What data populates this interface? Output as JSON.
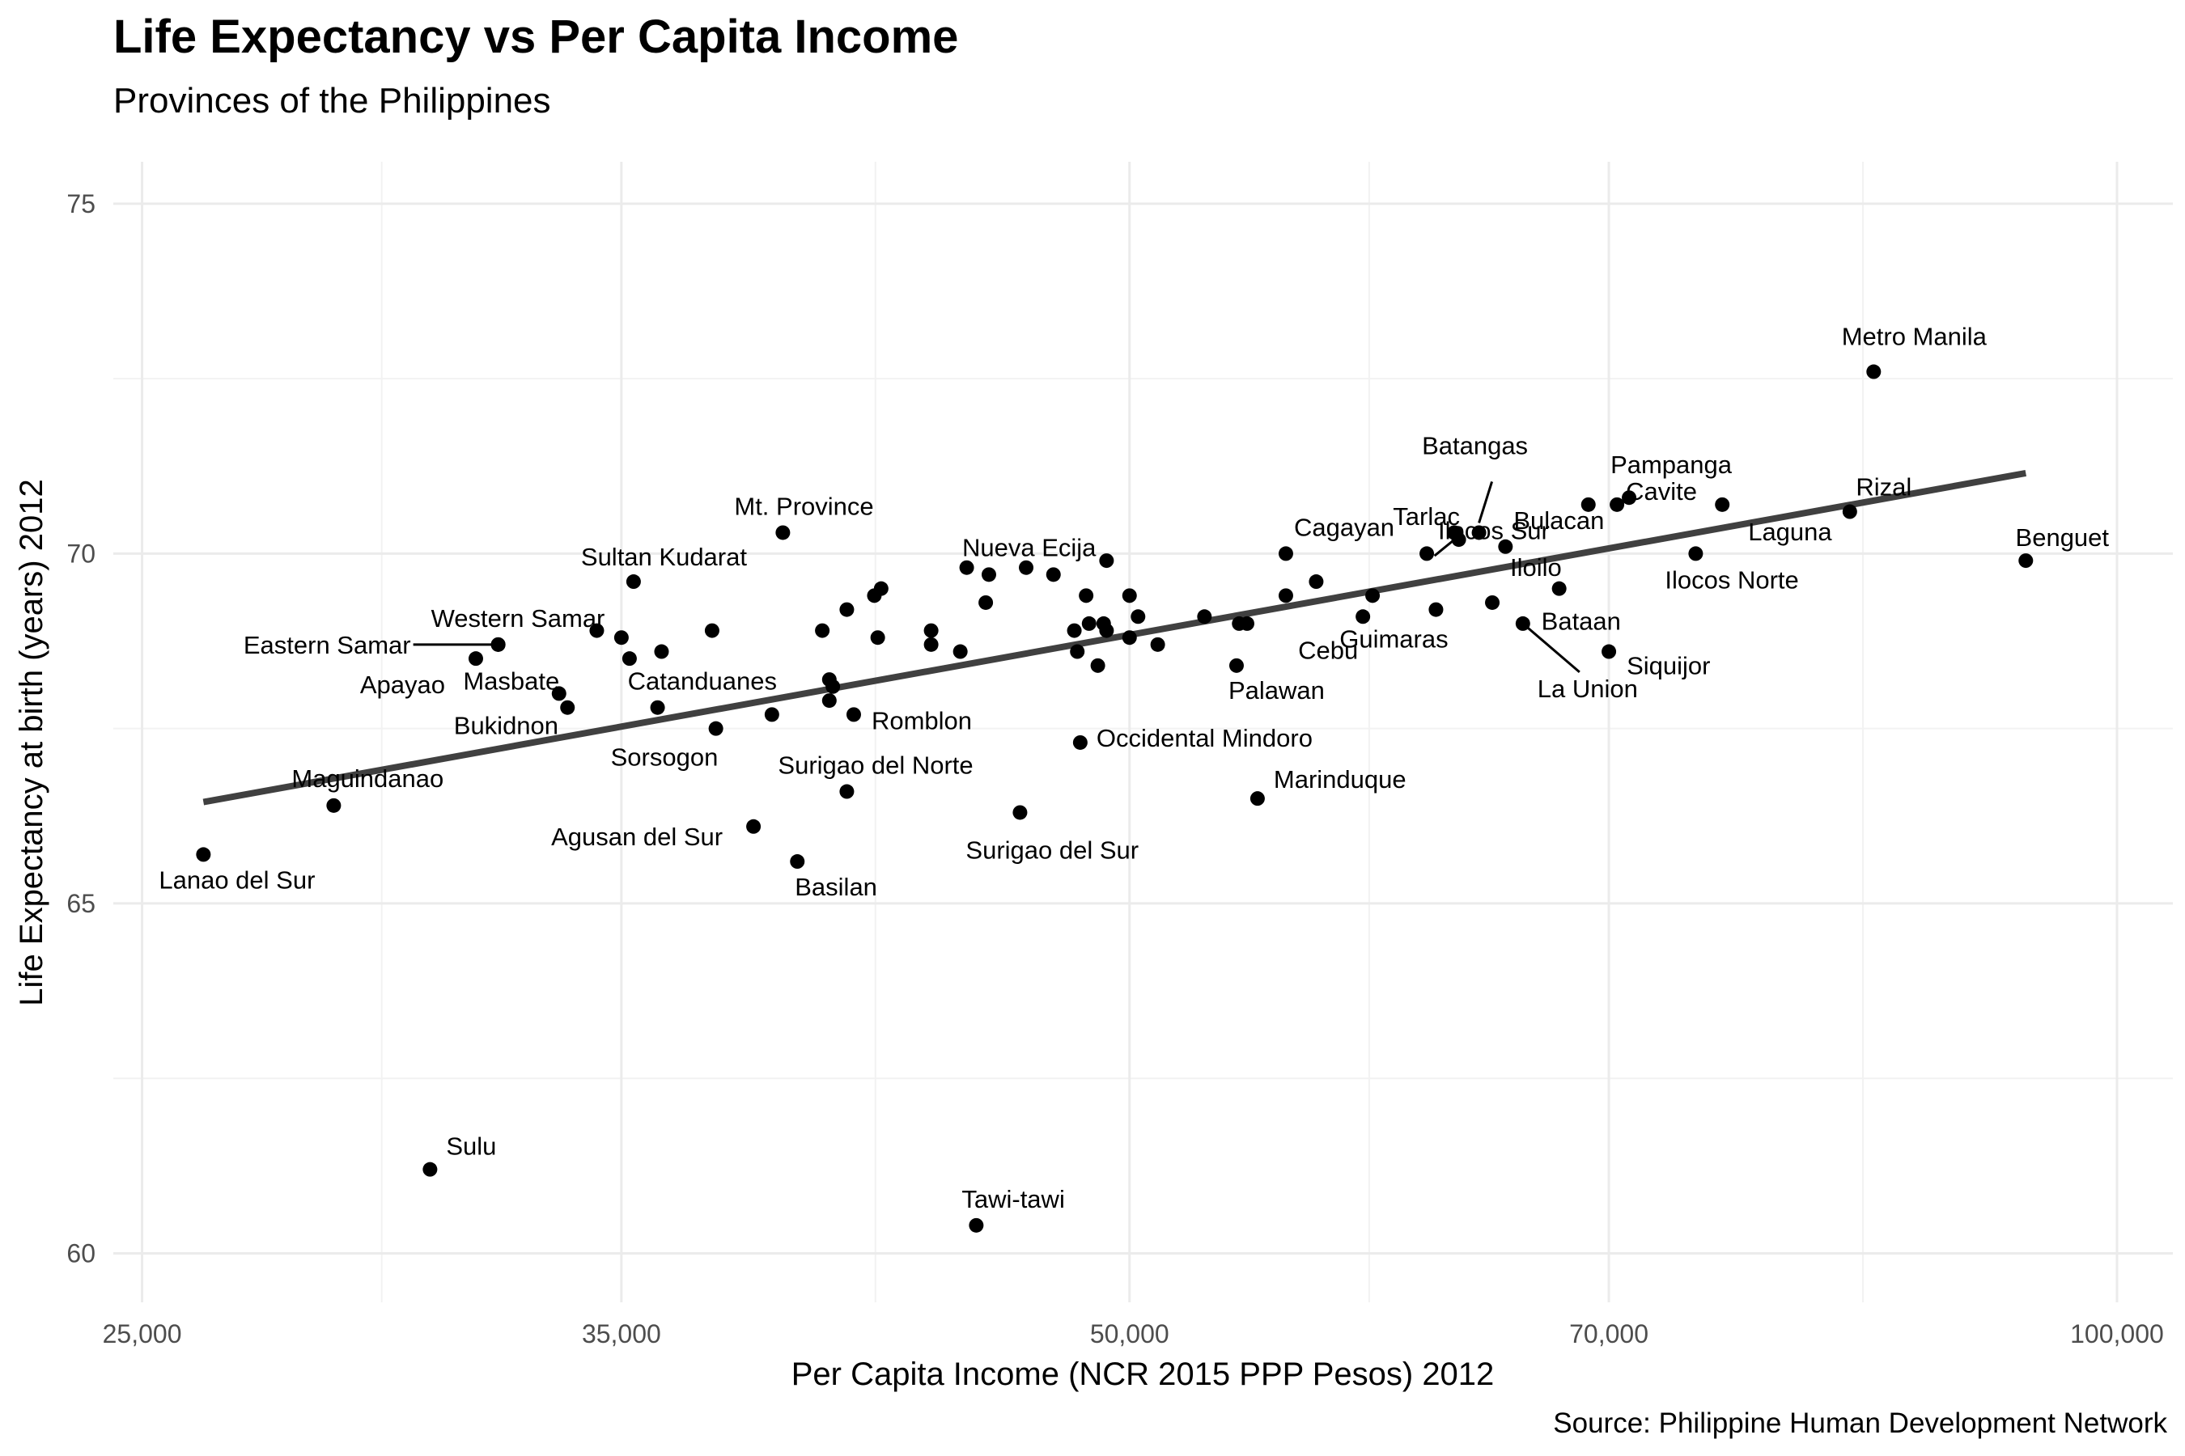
{
  "chart_data": {
    "type": "scatter",
    "title": "Life Expectancy vs Per Capita Income",
    "subtitle": "Provinces of the Philippines",
    "caption": "Source: Philippine Human Development Network",
    "xlabel": "Per Capita Income (NCR 2015 PPP Pesos) 2012",
    "ylabel": "Life Expectancy at birth (years) 2012",
    "x_scale": "log",
    "xlim": [
      24500,
      104000
    ],
    "ylim": [
      59.3,
      75.6
    ],
    "x_ticks": [
      25000,
      35000,
      50000,
      70000,
      100000
    ],
    "x_tick_labels": [
      "25,000",
      "35,000",
      "50,000",
      "70,000",
      "100,000"
    ],
    "y_ticks": [
      60,
      65,
      70,
      75
    ],
    "y_tick_labels": [
      "60",
      "65",
      "70",
      "75"
    ],
    "grid": true,
    "point_color": "#000000",
    "trend_color": "#404040",
    "trend_line": {
      "x": [
        26100,
        93800
      ],
      "y": [
        66.45,
        71.15
      ]
    },
    "points": [
      {
        "name": "Metro Manila",
        "x": 84300,
        "y": 72.6
      },
      {
        "name": "Benguet",
        "x": 93800,
        "y": 69.9
      },
      {
        "name": "Rizal",
        "x": 82900,
        "y": 70.6
      },
      {
        "name": "Pampanga",
        "x": 71000,
        "y": 70.8
      },
      {
        "name": "Cavite",
        "x": 70400,
        "y": 70.7
      },
      {
        "name": "Laguna",
        "x": 75800,
        "y": 70.7
      },
      {
        "name": "Ilocos Norte",
        "x": 74400,
        "y": 70.0
      },
      {
        "name": "",
        "x": 69000,
        "y": 70.7
      },
      {
        "name": "Siquijor",
        "x": 70000,
        "y": 68.6
      },
      {
        "name": "Bataan",
        "x": 67600,
        "y": 69.5
      },
      {
        "name": "La Union",
        "x": 65900,
        "y": 69.0
      },
      {
        "name": "Bulacan",
        "x": 65100,
        "y": 70.1
      },
      {
        "name": "Iloilo",
        "x": 64500,
        "y": 69.3
      },
      {
        "name": "Batangas",
        "x": 63900,
        "y": 70.3
      },
      {
        "name": "Tarlac",
        "x": 63000,
        "y": 70.2
      },
      {
        "name": "",
        "x": 62800,
        "y": 70.3
      },
      {
        "name": "Ilocos Sur",
        "x": 61600,
        "y": 70.0
      },
      {
        "name": "Guimaras",
        "x": 62000,
        "y": 69.2
      },
      {
        "name": "",
        "x": 59300,
        "y": 69.4
      },
      {
        "name": "Cebu",
        "x": 58900,
        "y": 69.1
      },
      {
        "name": "",
        "x": 57000,
        "y": 69.6
      },
      {
        "name": "",
        "x": 55800,
        "y": 69.4
      },
      {
        "name": "Cagayan",
        "x": 55800,
        "y": 70.0
      },
      {
        "name": "Palawan",
        "x": 53900,
        "y": 68.4
      },
      {
        "name": "",
        "x": 54000,
        "y": 69.0
      },
      {
        "name": "",
        "x": 54300,
        "y": 69.0
      },
      {
        "name": "Marinduque",
        "x": 54700,
        "y": 66.5
      },
      {
        "name": "",
        "x": 52700,
        "y": 69.1
      },
      {
        "name": "",
        "x": 51000,
        "y": 68.7
      },
      {
        "name": "",
        "x": 50300,
        "y": 69.1
      },
      {
        "name": "",
        "x": 50000,
        "y": 69.4
      },
      {
        "name": "",
        "x": 50000,
        "y": 68.8
      },
      {
        "name": "",
        "x": 49200,
        "y": 69.9
      },
      {
        "name": "",
        "x": 49100,
        "y": 69.0
      },
      {
        "name": "",
        "x": 49200,
        "y": 68.9
      },
      {
        "name": "",
        "x": 48900,
        "y": 68.4
      },
      {
        "name": "",
        "x": 48600,
        "y": 69.0
      },
      {
        "name": "",
        "x": 48500,
        "y": 69.4
      },
      {
        "name": "",
        "x": 48100,
        "y": 68.9
      },
      {
        "name": "",
        "x": 48200,
        "y": 68.6
      },
      {
        "name": "Occidental Mindoro",
        "x": 48300,
        "y": 67.3
      },
      {
        "name": "Surigao del Sur",
        "x": 46300,
        "y": 66.3
      },
      {
        "name": "",
        "x": 47400,
        "y": 69.7
      },
      {
        "name": "",
        "x": 46500,
        "y": 69.8
      },
      {
        "name": "Nueva Ecija",
        "x": 45300,
        "y": 69.7
      },
      {
        "name": "",
        "x": 45200,
        "y": 69.3
      },
      {
        "name": "",
        "x": 44600,
        "y": 69.8
      },
      {
        "name": "",
        "x": 44400,
        "y": 68.6
      },
      {
        "name": "Tawi-tawi",
        "x": 44900,
        "y": 60.4
      },
      {
        "name": "",
        "x": 43500,
        "y": 68.9
      },
      {
        "name": "",
        "x": 43500,
        "y": 68.7
      },
      {
        "name": "",
        "x": 42000,
        "y": 69.5
      },
      {
        "name": "",
        "x": 41800,
        "y": 69.4
      },
      {
        "name": "",
        "x": 41900,
        "y": 68.8
      },
      {
        "name": "",
        "x": 41000,
        "y": 69.2
      },
      {
        "name": "Surigao del Norte",
        "x": 41000,
        "y": 66.6
      },
      {
        "name": "Romblon",
        "x": 41200,
        "y": 67.7
      },
      {
        "name": "",
        "x": 40500,
        "y": 68.2
      },
      {
        "name": "",
        "x": 40500,
        "y": 67.9
      },
      {
        "name": "",
        "x": 40600,
        "y": 68.1
      },
      {
        "name": "",
        "x": 40300,
        "y": 68.9
      },
      {
        "name": "Mt. Province",
        "x": 39200,
        "y": 70.3
      },
      {
        "name": "",
        "x": 38900,
        "y": 67.7
      },
      {
        "name": "Basilan",
        "x": 39600,
        "y": 65.6
      },
      {
        "name": "Agusan del Sur",
        "x": 38400,
        "y": 66.1
      },
      {
        "name": "Sorsogon",
        "x": 37400,
        "y": 67.5
      },
      {
        "name": "",
        "x": 37300,
        "y": 68.9
      },
      {
        "name": "",
        "x": 36000,
        "y": 68.6
      },
      {
        "name": "Catanduanes",
        "x": 35900,
        "y": 67.8
      },
      {
        "name": "Sultan Kudarat",
        "x": 35300,
        "y": 69.6
      },
      {
        "name": "",
        "x": 35200,
        "y": 68.5
      },
      {
        "name": "",
        "x": 35000,
        "y": 68.8
      },
      {
        "name": "",
        "x": 34400,
        "y": 68.9
      },
      {
        "name": "Masbate",
        "x": 33700,
        "y": 67.8
      },
      {
        "name": "Bukidnon",
        "x": 33500,
        "y": 68.0
      },
      {
        "name": "Eastern Samar",
        "x": 32100,
        "y": 68.7
      },
      {
        "name": "Western Samar",
        "x": 32100,
        "y": 68.7
      },
      {
        "name": "Apayao",
        "x": 31600,
        "y": 68.5
      },
      {
        "name": "Sulu",
        "x": 30600,
        "y": 61.2
      },
      {
        "name": "Maguindanao",
        "x": 28600,
        "y": 66.4
      },
      {
        "name": "Lanao del Sur",
        "x": 26100,
        "y": 65.7
      }
    ]
  }
}
